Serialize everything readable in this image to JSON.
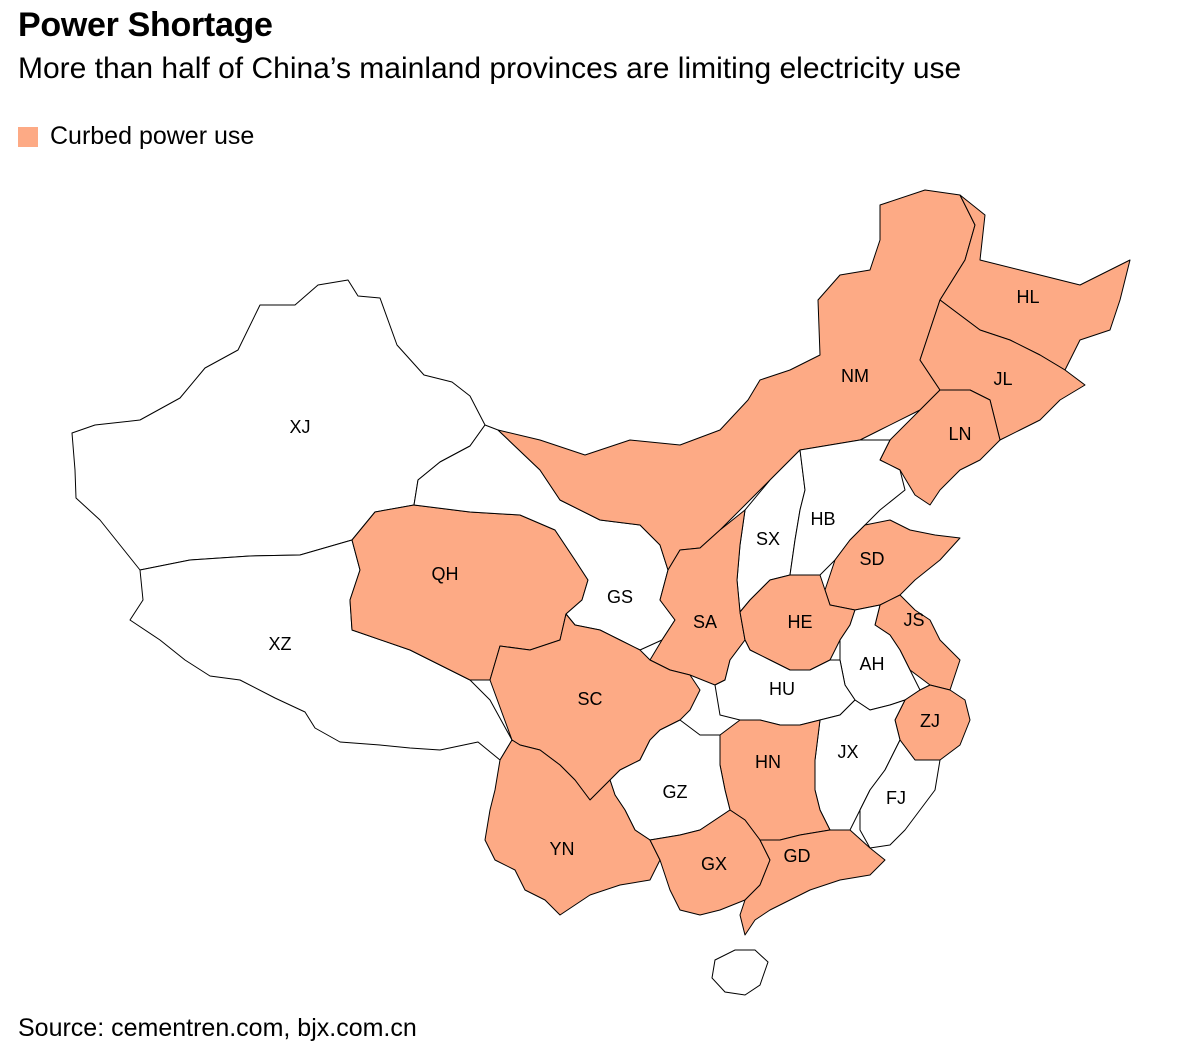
{
  "header": {
    "title": "Power Shortage",
    "subtitle": "More than half of China’s mainland provinces are limiting electricity use"
  },
  "legend": {
    "label": "Curbed power use",
    "color": "#fdaa85"
  },
  "colors": {
    "curbed": "#fdaa85",
    "normal": "#ffffff",
    "border": "#000000"
  },
  "provinces": [
    {
      "code": "XJ",
      "curbed": false
    },
    {
      "code": "XZ",
      "curbed": false
    },
    {
      "code": "QH",
      "curbed": true
    },
    {
      "code": "GS",
      "curbed": false
    },
    {
      "code": "NM",
      "curbed": true
    },
    {
      "code": "HL",
      "curbed": true
    },
    {
      "code": "JL",
      "curbed": true
    },
    {
      "code": "LN",
      "curbed": true
    },
    {
      "code": "SX",
      "curbed": false
    },
    {
      "code": "HB",
      "curbed": false
    },
    {
      "code": "SD",
      "curbed": true
    },
    {
      "code": "SA",
      "curbed": true
    },
    {
      "code": "HE",
      "curbed": true
    },
    {
      "code": "JS",
      "curbed": true
    },
    {
      "code": "AH",
      "curbed": false
    },
    {
      "code": "HU",
      "curbed": false
    },
    {
      "code": "SC",
      "curbed": true
    },
    {
      "code": "ZJ",
      "curbed": true
    },
    {
      "code": "JX",
      "curbed": false
    },
    {
      "code": "HN",
      "curbed": true
    },
    {
      "code": "GZ",
      "curbed": false
    },
    {
      "code": "FJ",
      "curbed": false
    },
    {
      "code": "YN",
      "curbed": true
    },
    {
      "code": "GX",
      "curbed": true
    },
    {
      "code": "GD",
      "curbed": true
    }
  ],
  "source": "Source: cementren.com, bjx.com.cn"
}
